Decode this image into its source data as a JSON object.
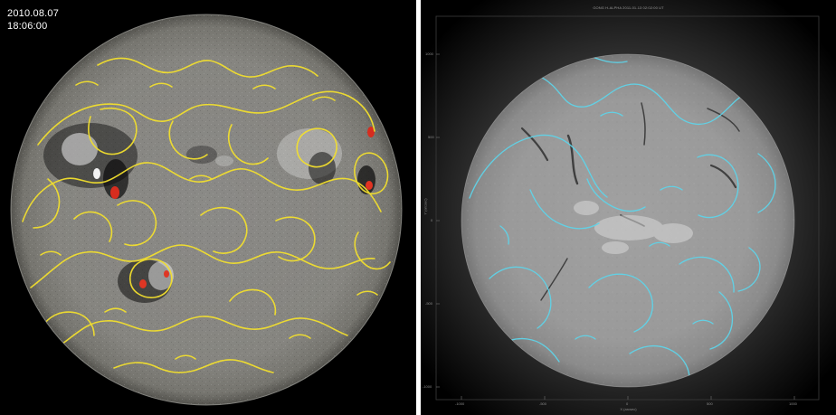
{
  "left_panel": {
    "date": "2010.08.07",
    "time": "18:06:00",
    "contour_color": "#f2df2e",
    "disk_base_color": "#8a8a88"
  },
  "right_panel": {
    "title": "GONG H-ALPHA 2011-01-13 02:02:00 UT",
    "x_axis_label": "X (arcsec)",
    "y_axis_label": "Y (arcsec)",
    "contour_color": "#5fd3e8",
    "disk_base_color": "#9d9d9d",
    "x_ticks": [
      "-1000",
      "-500",
      "0",
      "500",
      "1000"
    ],
    "y_ticks": [
      "-1000",
      "-500",
      "0",
      "500",
      "1000"
    ]
  }
}
